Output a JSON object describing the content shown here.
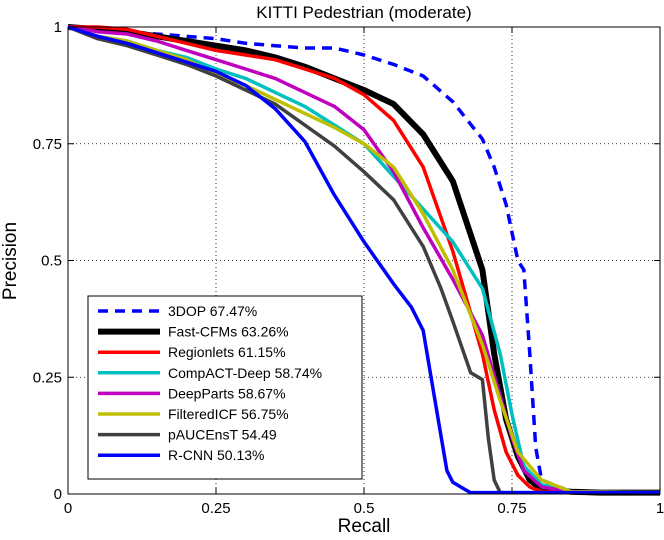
{
  "chart_data": {
    "type": "line",
    "title": "KITTI Pedestrian (moderate)",
    "xlabel": "Recall",
    "ylabel": "Precision",
    "xlim": [
      0,
      1
    ],
    "ylim": [
      0,
      1
    ],
    "xticks": [
      0,
      0.25,
      0.5,
      0.75,
      1
    ],
    "yticks": [
      0,
      0.25,
      0.5,
      0.75,
      1
    ],
    "xtick_labels": [
      "0",
      "0.25",
      "0.5",
      "0.75",
      "1"
    ],
    "ytick_labels": [
      "0",
      "0.25",
      "0.5",
      "0.75",
      "1"
    ],
    "grid": true,
    "legend_position": "bottom-left",
    "series": [
      {
        "name": "3DOP 67.47%",
        "color": "#0000ff",
        "line_style": "dashed",
        "x": [
          0,
          0.1,
          0.2,
          0.25,
          0.3,
          0.35,
          0.4,
          0.45,
          0.5,
          0.55,
          0.6,
          0.65,
          0.7,
          0.72,
          0.74,
          0.76,
          0.77,
          0.78,
          0.79,
          0.8,
          0.85,
          0.9,
          1.0
        ],
        "y": [
          1.0,
          0.99,
          0.98,
          0.975,
          0.965,
          0.96,
          0.955,
          0.955,
          0.94,
          0.92,
          0.895,
          0.84,
          0.76,
          0.7,
          0.62,
          0.5,
          0.48,
          0.3,
          0.1,
          0.03,
          0.005,
          0.003,
          0.003
        ]
      },
      {
        "name": "Fast-CFMs 63.26%",
        "color": "#000000",
        "line_style": "solid",
        "x": [
          0,
          0.05,
          0.1,
          0.15,
          0.2,
          0.25,
          0.3,
          0.35,
          0.4,
          0.45,
          0.5,
          0.55,
          0.6,
          0.65,
          0.7,
          0.72,
          0.74,
          0.76,
          0.78,
          0.8,
          0.85,
          0.9,
          1.0
        ],
        "y": [
          1.0,
          0.995,
          0.99,
          0.98,
          0.97,
          0.96,
          0.95,
          0.935,
          0.915,
          0.89,
          0.865,
          0.835,
          0.77,
          0.67,
          0.48,
          0.3,
          0.16,
          0.08,
          0.03,
          0.01,
          0.005,
          0.003,
          0.003
        ]
      },
      {
        "name": "Regionlets 61.15%",
        "color": "#ff0000",
        "line_style": "solid",
        "x": [
          0,
          0.05,
          0.1,
          0.15,
          0.2,
          0.25,
          0.3,
          0.35,
          0.4,
          0.45,
          0.5,
          0.55,
          0.6,
          0.65,
          0.7,
          0.72,
          0.74,
          0.76,
          0.78,
          0.8,
          0.9,
          1.0
        ],
        "y": [
          1.0,
          1.0,
          0.995,
          0.98,
          0.965,
          0.95,
          0.94,
          0.93,
          0.91,
          0.89,
          0.855,
          0.8,
          0.7,
          0.52,
          0.3,
          0.18,
          0.09,
          0.04,
          0.015,
          0.005,
          0.003,
          0.003
        ]
      },
      {
        "name": "CompACT-Deep 58.74%",
        "color": "#00bfbf",
        "line_style": "solid",
        "x": [
          0,
          0.05,
          0.1,
          0.15,
          0.2,
          0.25,
          0.3,
          0.35,
          0.4,
          0.45,
          0.5,
          0.55,
          0.6,
          0.65,
          0.7,
          0.73,
          0.75,
          0.77,
          0.8,
          0.85,
          1.0
        ],
        "y": [
          1.0,
          0.98,
          0.97,
          0.95,
          0.935,
          0.91,
          0.89,
          0.86,
          0.83,
          0.79,
          0.75,
          0.68,
          0.61,
          0.54,
          0.44,
          0.3,
          0.17,
          0.06,
          0.02,
          0.005,
          0.003
        ]
      },
      {
        "name": "DeepParts 58.67%",
        "color": "#bf00bf",
        "line_style": "solid",
        "x": [
          0,
          0.05,
          0.1,
          0.15,
          0.2,
          0.25,
          0.3,
          0.35,
          0.4,
          0.45,
          0.5,
          0.55,
          0.6,
          0.65,
          0.7,
          0.73,
          0.75,
          0.77,
          0.8,
          0.85,
          1.0
        ],
        "y": [
          1.0,
          0.99,
          0.985,
          0.97,
          0.95,
          0.93,
          0.91,
          0.89,
          0.86,
          0.83,
          0.78,
          0.69,
          0.57,
          0.46,
          0.34,
          0.21,
          0.12,
          0.05,
          0.015,
          0.005,
          0.003
        ]
      },
      {
        "name": "FilteredICF 56.75%",
        "color": "#bfbf00",
        "line_style": "solid",
        "x": [
          0,
          0.05,
          0.1,
          0.15,
          0.2,
          0.25,
          0.3,
          0.35,
          0.4,
          0.45,
          0.5,
          0.55,
          0.6,
          0.65,
          0.7,
          0.73,
          0.76,
          0.8,
          0.85,
          1.0
        ],
        "y": [
          1.0,
          0.98,
          0.97,
          0.95,
          0.93,
          0.9,
          0.875,
          0.845,
          0.815,
          0.785,
          0.75,
          0.7,
          0.6,
          0.48,
          0.32,
          0.2,
          0.09,
          0.03,
          0.005,
          0.003
        ]
      },
      {
        "name": "pAUCEnsT 54.49",
        "color": "#404040",
        "line_style": "solid",
        "x": [
          0,
          0.05,
          0.1,
          0.15,
          0.2,
          0.25,
          0.3,
          0.35,
          0.4,
          0.45,
          0.5,
          0.55,
          0.6,
          0.63,
          0.65,
          0.68,
          0.7,
          0.71,
          0.72,
          0.73,
          1.0
        ],
        "y": [
          1.0,
          0.975,
          0.96,
          0.94,
          0.92,
          0.895,
          0.865,
          0.835,
          0.79,
          0.745,
          0.69,
          0.63,
          0.53,
          0.44,
          0.37,
          0.26,
          0.245,
          0.12,
          0.03,
          0.003,
          0.003
        ]
      },
      {
        "name": "R-CNN 50.13%",
        "color": "#0000ff",
        "line_style": "solid",
        "x": [
          0,
          0.05,
          0.1,
          0.15,
          0.2,
          0.25,
          0.3,
          0.35,
          0.4,
          0.45,
          0.5,
          0.55,
          0.58,
          0.6,
          0.62,
          0.64,
          0.65,
          0.67,
          0.68,
          0.7,
          1.0
        ],
        "y": [
          1.0,
          0.98,
          0.965,
          0.945,
          0.925,
          0.905,
          0.875,
          0.825,
          0.755,
          0.64,
          0.54,
          0.45,
          0.4,
          0.35,
          0.2,
          0.05,
          0.025,
          0.01,
          0.003,
          0.003,
          0.003
        ]
      }
    ]
  }
}
